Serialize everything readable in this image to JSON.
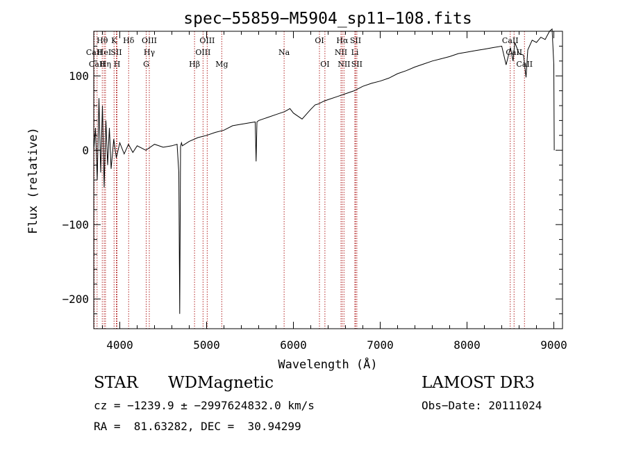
{
  "chart_data": {
    "type": "line",
    "title": "spec−55859−M5904_sp11−108.fits",
    "xlabel": "Wavelength (Å)",
    "ylabel": "Flux (relative)",
    "xlim": [
      3700,
      9100
    ],
    "ylim": [
      -240,
      160
    ],
    "xticks": [
      4000,
      5000,
      6000,
      7000,
      8000,
      9000
    ],
    "yticks": [
      -200,
      -100,
      0,
      100
    ],
    "grid": false,
    "legend": "none",
    "line_color": "#000000",
    "marker_color": "#b22222",
    "series": [
      {
        "x": [
          3700,
          3720,
          3740,
          3760,
          3780,
          3800,
          3820,
          3840,
          3860,
          3880,
          3900,
          3930,
          3960,
          4000,
          4050,
          4100,
          4150,
          4200,
          4300,
          4400,
          4500,
          4600,
          4660,
          4680,
          4690,
          4700,
          4710,
          4720,
          4800,
          4900,
          5000,
          5100,
          5200,
          5300,
          5400,
          5500,
          5560,
          5570,
          5580,
          5600,
          5700,
          5800,
          5900,
          5960,
          6000,
          6100,
          6200,
          6250,
          6280,
          6300,
          6350,
          6400,
          6500,
          6600,
          6700,
          6800,
          6900,
          7000,
          7100,
          7200,
          7300,
          7400,
          7500,
          7600,
          7700,
          7800,
          7900,
          8000,
          8100,
          8200,
          8300,
          8400,
          8450,
          8500,
          8530,
          8550,
          8600,
          8650,
          8680,
          8700,
          8750,
          8800,
          8850,
          8900,
          8950,
          8980,
          9000,
          9005
        ],
        "y": [
          0,
          30,
          -40,
          70,
          -30,
          60,
          -50,
          40,
          -20,
          30,
          -25,
          15,
          -10,
          10,
          -5,
          8,
          -3,
          6,
          0,
          8,
          4,
          6,
          8,
          -30,
          -220,
          5,
          10,
          6,
          12,
          17,
          20,
          24,
          27,
          33,
          35,
          37,
          38,
          -15,
          38,
          40,
          44,
          48,
          52,
          56,
          50,
          42,
          55,
          61,
          62,
          63,
          66,
          68,
          72,
          76,
          80,
          86,
          90,
          93,
          97,
          103,
          107,
          112,
          116,
          120,
          123,
          126,
          130,
          132,
          134,
          136,
          138,
          140,
          115,
          138,
          120,
          145,
          130,
          128,
          98,
          135,
          148,
          145,
          152,
          149,
          160,
          163,
          115,
          0
        ]
      }
    ],
    "lines": [
      {
        "name": "Hθ",
        "x": 3798,
        "row": 1
      },
      {
        "name": "CaII",
        "x": 3706,
        "row": 2
      },
      {
        "name": "HeI",
        "x": 3820,
        "row": 2
      },
      {
        "name": "CaII",
        "x": 3738,
        "row": 3
      },
      {
        "name": "Hη",
        "x": 3835,
        "row": 3
      },
      {
        "name": "K",
        "x": 3934,
        "row": 1
      },
      {
        "name": "SII",
        "x": 3960,
        "row": 2
      },
      {
        "name": "H",
        "x": 3968,
        "row": 3
      },
      {
        "name": "Hδ",
        "x": 4102,
        "row": 1
      },
      {
        "name": "OIII",
        "x": 4340,
        "row": 1
      },
      {
        "name": "Hγ",
        "x": 4340,
        "row": 2
      },
      {
        "name": "G",
        "x": 4304,
        "row": 3
      },
      {
        "name": "Hβ",
        "x": 4861,
        "row": 3
      },
      {
        "name": "OIII",
        "x": 5007,
        "row": 1
      },
      {
        "name": "OIII",
        "x": 4959,
        "row": 2
      },
      {
        "name": "Mg",
        "x": 5175,
        "row": 3
      },
      {
        "name": "Na",
        "x": 5893,
        "row": 2
      },
      {
        "name": "OI",
        "x": 6300,
        "row": 1
      },
      {
        "name": "OI",
        "x": 6363,
        "row": 3
      },
      {
        "name": "Hα",
        "x": 6563,
        "row": 1
      },
      {
        "name": "NII",
        "x": 6548,
        "row": 2
      },
      {
        "name": "NII",
        "x": 6583,
        "row": 3
      },
      {
        "name": "SII",
        "x": 6716,
        "row": 1
      },
      {
        "name": "Li",
        "x": 6708,
        "row": 2
      },
      {
        "name": "SII",
        "x": 6731,
        "row": 3
      },
      {
        "name": "CaII",
        "x": 8498,
        "row": 1
      },
      {
        "name": "CaII",
        "x": 8542,
        "row": 2
      },
      {
        "name": "CaII",
        "x": 8662,
        "row": 3
      }
    ]
  },
  "info": {
    "object_type": "STAR",
    "subclass": "WDMagnetic",
    "survey": "LAMOST DR3",
    "cz": "cz = −1239.9 ± −2997624832.0 km/s",
    "obs_date": "Obs−Date: 20111024",
    "coords": "RA =  81.63282, DEC =  30.94299"
  }
}
